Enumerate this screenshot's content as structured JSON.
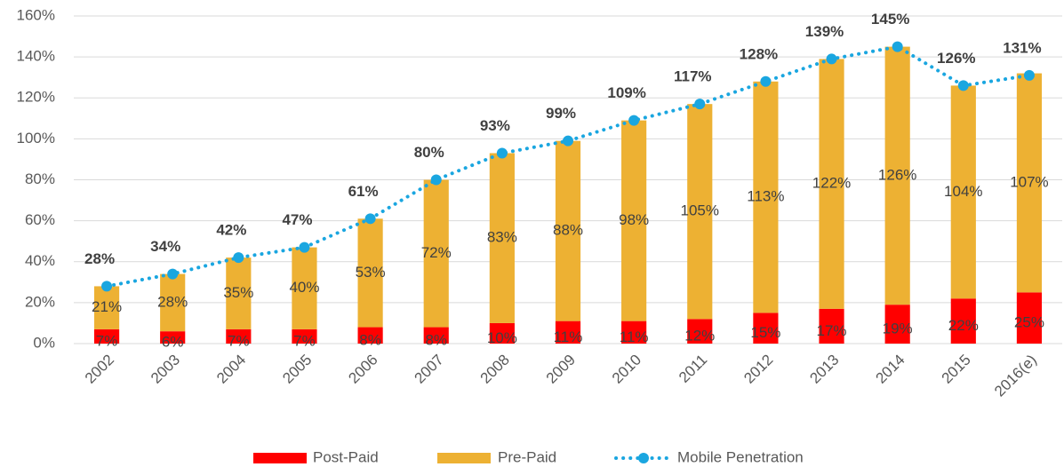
{
  "chart_data": {
    "type": "bar",
    "stacked": true,
    "categories": [
      "2002",
      "2003",
      "2004",
      "2005",
      "2006",
      "2007",
      "2008",
      "2009",
      "2010",
      "2011",
      "2012",
      "2013",
      "2014",
      "2015",
      "2016(e)"
    ],
    "series": [
      {
        "name": "Post-Paid",
        "type": "bar",
        "color": "#ff0000",
        "values": [
          7,
          6,
          7,
          7,
          8,
          8,
          10,
          11,
          11,
          12,
          15,
          17,
          19,
          22,
          25
        ],
        "value_labels": [
          "7%",
          "6%",
          "7%",
          "7%",
          "8%",
          "8%",
          "10%",
          "11%",
          "11%",
          "12%",
          "15%",
          "17%",
          "19%",
          "22%",
          "25%"
        ]
      },
      {
        "name": "Pre-Paid",
        "type": "bar",
        "color": "#edb133",
        "values": [
          21,
          28,
          35,
          40,
          53,
          72,
          83,
          88,
          98,
          105,
          113,
          122,
          126,
          104,
          107
        ],
        "value_labels": [
          "21%",
          "28%",
          "35%",
          "40%",
          "53%",
          "72%",
          "83%",
          "88%",
          "98%",
          "105%",
          "113%",
          "122%",
          "126%",
          "104%",
          "107%"
        ]
      },
      {
        "name": "Mobile Penetration",
        "type": "line",
        "color": "#1aa6e0",
        "values": [
          28,
          34,
          42,
          47,
          61,
          80,
          93,
          99,
          109,
          117,
          128,
          139,
          145,
          126,
          131
        ],
        "value_labels": [
          "28%",
          "34%",
          "42%",
          "47%",
          "61%",
          "80%",
          "93%",
          "99%",
          "109%",
          "117%",
          "128%",
          "139%",
          "145%",
          "126%",
          "131%"
        ]
      }
    ],
    "ylim": [
      0,
      160
    ],
    "yticks": [
      {
        "value": 0,
        "label": "0%"
      },
      {
        "value": 20,
        "label": "20%"
      },
      {
        "value": 40,
        "label": "40%"
      },
      {
        "value": 60,
        "label": "60%"
      },
      {
        "value": 80,
        "label": "80%"
      },
      {
        "value": 100,
        "label": "100%"
      },
      {
        "value": 120,
        "label": "120%"
      },
      {
        "value": 140,
        "label": "140%"
      },
      {
        "value": 160,
        "label": "160%"
      }
    ],
    "grid": true,
    "legend": "bottom"
  }
}
